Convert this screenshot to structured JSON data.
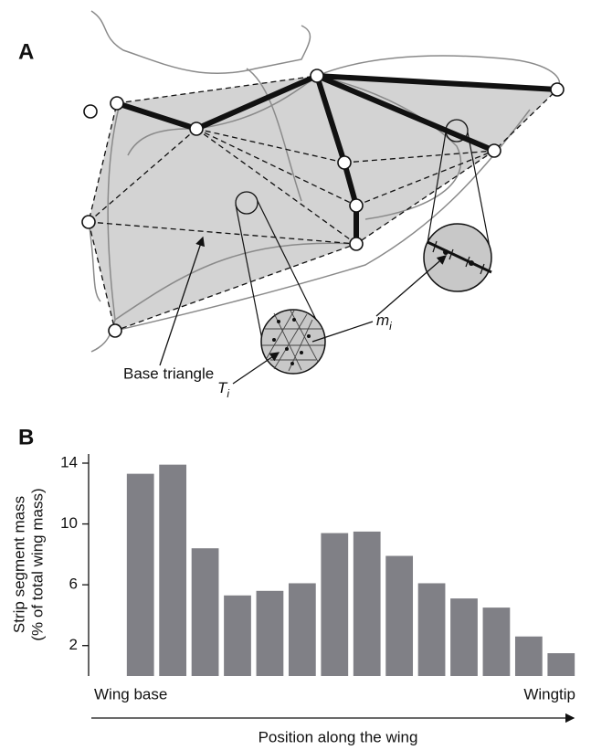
{
  "panel_a": {
    "label": "A",
    "base_triangle": "Base triangle",
    "m_label": {
      "base": "m",
      "sub": "i"
    },
    "t_label": {
      "base": "T",
      "sub": "i"
    }
  },
  "chart_data": {
    "type": "bar",
    "panel_label": "B",
    "ylabel": [
      "Strip segment mass",
      "(% of total wing mass)"
    ],
    "xlabel": "Position along the wing",
    "x_start_label": "Wing base",
    "x_end_label": "Wingtip",
    "categories": [
      null,
      null,
      null,
      null,
      null,
      null,
      null,
      null,
      null,
      null,
      null,
      null,
      null,
      null
    ],
    "values": [
      13.3,
      13.9,
      8.4,
      5.3,
      5.6,
      6.1,
      9.4,
      9.5,
      7.9,
      6.1,
      5.1,
      4.5,
      2.6,
      1.5
    ],
    "color": "#808086",
    "ylim": [
      0,
      14.6
    ],
    "yticks": [
      2,
      6,
      10,
      14
    ]
  }
}
